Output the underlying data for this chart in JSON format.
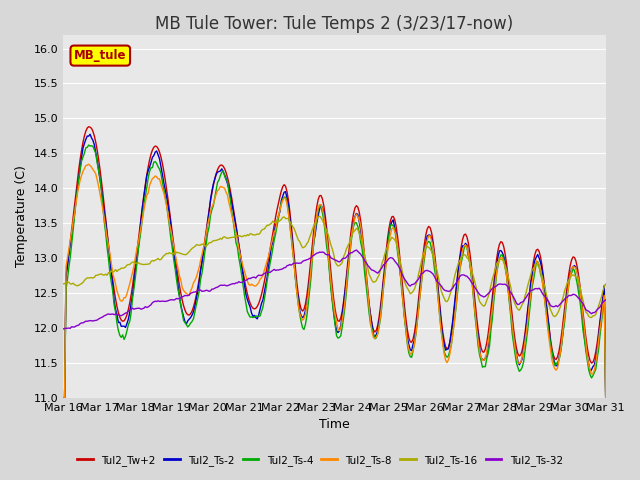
{
  "title": "MB Tule Tower: Tule Temps 2 (3/23/17-now)",
  "xlabel": "Time",
  "ylabel": "Temperature (C)",
  "ylim": [
    11.0,
    16.2
  ],
  "yticks": [
    11.0,
    11.5,
    12.0,
    12.5,
    13.0,
    13.5,
    14.0,
    14.5,
    15.0,
    15.5,
    16.0
  ],
  "xtick_labels": [
    "Mar 16",
    "Mar 17",
    "Mar 18",
    "Mar 19",
    "Mar 20",
    "Mar 21",
    "Mar 22",
    "Mar 23",
    "Mar 24",
    "Mar 25",
    "Mar 26",
    "Mar 27",
    "Mar 28",
    "Mar 29",
    "Mar 30",
    "Mar 31"
  ],
  "legend_label": "MB_tule",
  "legend_box_facecolor": "#ffff00",
  "legend_box_edgecolor": "#aa0000",
  "legend_text_color": "#aa0000",
  "series": [
    {
      "label": "Tul2_Tw+2",
      "color": "#cc0000"
    },
    {
      "label": "Tul2_Ts-2",
      "color": "#0000cc"
    },
    {
      "label": "Tul2_Ts-4",
      "color": "#00aa00"
    },
    {
      "label": "Tul2_Ts-8",
      "color": "#ff8800"
    },
    {
      "label": "Tul2_Ts-16",
      "color": "#aaaa00"
    },
    {
      "label": "Tul2_Ts-32",
      "color": "#8800cc"
    }
  ],
  "background_color": "#d8d8d8",
  "plot_bg_color": "#e8e8e8",
  "grid_color": "#ffffff",
  "title_fontsize": 12,
  "axis_fontsize": 9,
  "tick_fontsize": 8
}
